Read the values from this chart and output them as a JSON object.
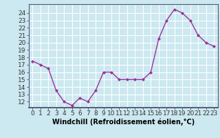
{
  "x": [
    0,
    1,
    2,
    3,
    4,
    5,
    6,
    7,
    8,
    9,
    10,
    11,
    12,
    13,
    14,
    15,
    16,
    17,
    18,
    19,
    20,
    21,
    22,
    23
  ],
  "y": [
    17.5,
    17.0,
    16.5,
    13.5,
    12.0,
    11.5,
    12.5,
    12.0,
    13.5,
    16.0,
    16.0,
    15.0,
    15.0,
    15.0,
    15.0,
    16.0,
    20.5,
    23.0,
    24.5,
    24.0,
    23.0,
    21.0,
    20.0,
    19.5
  ],
  "line_color": "#993399",
  "marker": "D",
  "marker_size": 2,
  "bg_color": "#cce8f0",
  "grid_color": "#ffffff",
  "xlabel": "Windchill (Refroidissement éolien,°C)",
  "xlabel_fontsize": 7,
  "yticks": [
    12,
    13,
    14,
    15,
    16,
    17,
    18,
    19,
    20,
    21,
    22,
    23,
    24
  ],
  "ylim": [
    11.2,
    25.2
  ],
  "xlim": [
    -0.5,
    23.5
  ],
  "tick_fontsize": 6.5,
  "line_width": 1.0
}
